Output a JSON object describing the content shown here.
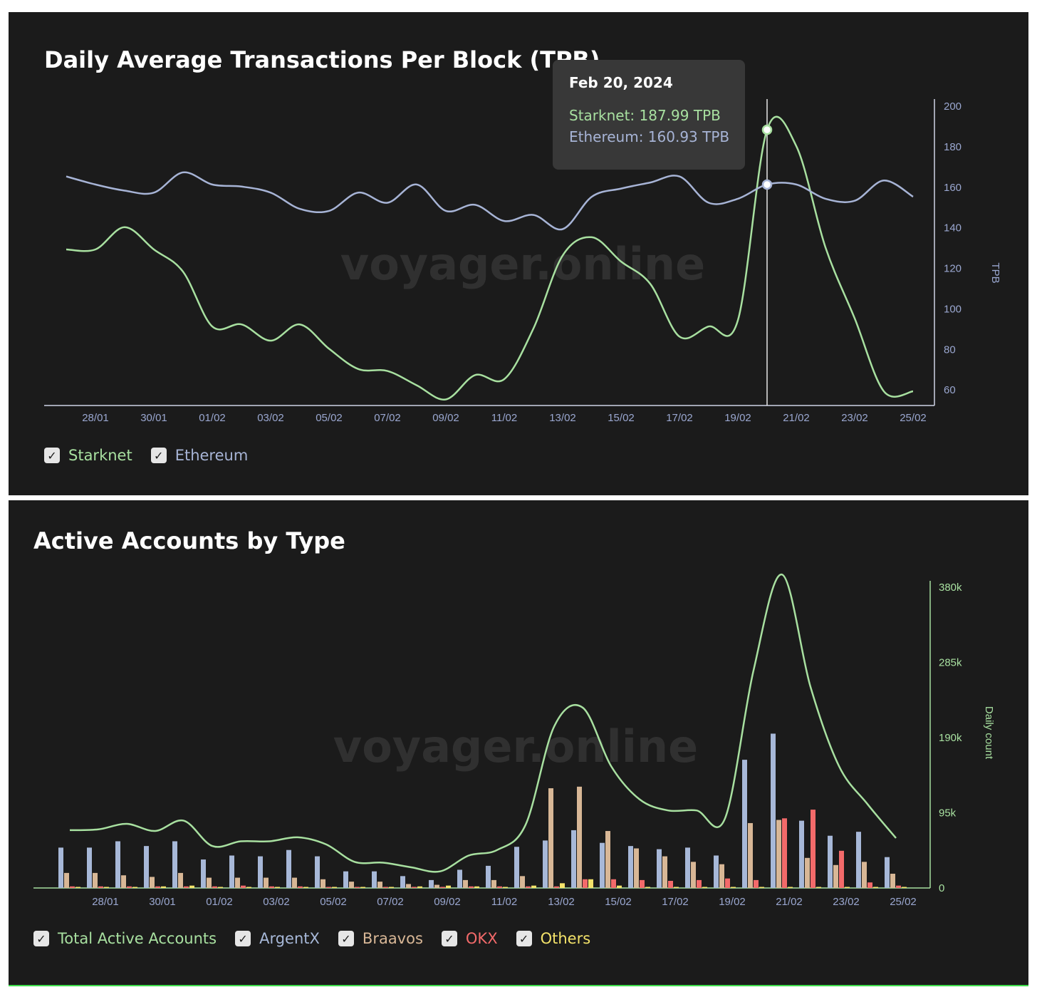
{
  "colors": {
    "starknet": "#a8e0a0",
    "ethereum": "#a7b4d6",
    "total": "#a8e0a0",
    "argentx": "#a7b8d8",
    "braavos": "#d8b796",
    "okx": "#f36a6a",
    "others": "#f4e36a",
    "tick_text": "#9aa7d0"
  },
  "chart_data": [
    {
      "type": "line",
      "title": "Daily Average Transactions Per Block (TPB)",
      "ylabel": "TPB",
      "ylim": [
        52,
        200
      ],
      "yticks": [
        60,
        80,
        100,
        120,
        140,
        160,
        180,
        200
      ],
      "x_tick_labels": [
        "28/01",
        "30/01",
        "01/02",
        "03/02",
        "05/02",
        "07/02",
        "09/02",
        "11/02",
        "13/02",
        "15/02",
        "17/02",
        "19/02",
        "21/02",
        "23/02",
        "25/02"
      ],
      "x": [
        "27/01",
        "28/01",
        "29/01",
        "30/01",
        "31/01",
        "01/02",
        "02/02",
        "03/02",
        "04/02",
        "05/02",
        "06/02",
        "07/02",
        "08/02",
        "09/02",
        "10/02",
        "11/02",
        "12/02",
        "13/02",
        "14/02",
        "15/02",
        "16/02",
        "17/02",
        "18/02",
        "19/02",
        "20/02",
        "21/02",
        "22/02",
        "23/02",
        "24/02",
        "25/02"
      ],
      "series": [
        {
          "name": "Starknet",
          "values": [
            129,
            129,
            140,
            129,
            118,
            91,
            92,
            84,
            92,
            80,
            70,
            69,
            62,
            55,
            67,
            65,
            90,
            126,
            135,
            123,
            112,
            86,
            91,
            94,
            188,
            180,
            130,
            95,
            59,
            59
          ]
        },
        {
          "name": "Ethereum",
          "values": [
            165,
            161,
            158,
            157,
            167,
            161,
            160,
            157,
            149,
            148,
            157,
            152,
            161,
            148,
            151,
            143,
            146,
            139,
            155,
            159,
            162,
            165,
            152,
            154,
            161,
            161,
            154,
            153,
            163,
            155
          ]
        }
      ],
      "tooltip": {
        "title": "Feb 20, 2024",
        "lines": [
          "Starknet: 187.99 TPB",
          "Ethereum: 160.93 TPB"
        ]
      },
      "watermark": "voyager.online",
      "legend": [
        "Starknet",
        "Ethereum"
      ],
      "grid": false,
      "legend_placement": "bottom-left"
    },
    {
      "type": "bar",
      "title": "Active Accounts by Type",
      "ylabel": "Daily count",
      "ylim": [
        0,
        380000
      ],
      "ytick_values": [
        0,
        95000,
        190000,
        285000,
        380000
      ],
      "ytick_labels": [
        "0",
        "95k",
        "190k",
        "285k",
        "380k"
      ],
      "x_tick_labels": [
        "28/01",
        "30/01",
        "01/02",
        "03/02",
        "05/02",
        "07/02",
        "09/02",
        "11/02",
        "13/02",
        "15/02",
        "17/02",
        "19/02",
        "21/02",
        "23/02",
        "25/02"
      ],
      "categories": [
        "27/01",
        "28/01",
        "29/01",
        "30/01",
        "31/01",
        "01/02",
        "02/02",
        "03/02",
        "04/02",
        "05/02",
        "06/02",
        "07/02",
        "08/02",
        "09/02",
        "10/02",
        "11/02",
        "12/02",
        "13/02",
        "14/02",
        "15/02",
        "16/02",
        "17/02",
        "18/02",
        "19/02",
        "20/02",
        "21/02",
        "22/02",
        "23/02",
        "24/02",
        "25/02"
      ],
      "series": [
        {
          "name": "Total Active Accounts",
          "type": "line",
          "values": [
            73000,
            74000,
            81000,
            72000,
            85000,
            53000,
            59000,
            59000,
            64000,
            55000,
            33000,
            32000,
            26000,
            21000,
            41000,
            48000,
            80000,
            204000,
            228000,
            154000,
            112000,
            98000,
            98000,
            88000,
            275000,
            396000,
            254000,
            154000,
            106000,
            63000
          ]
        },
        {
          "name": "ArgentX",
          "values": [
            51000,
            51000,
            59000,
            53000,
            59000,
            36000,
            41000,
            40000,
            48000,
            40000,
            21000,
            21000,
            15000,
            10000,
            23000,
            28000,
            52000,
            60000,
            73000,
            57000,
            53000,
            49000,
            51000,
            41000,
            162000,
            195000,
            85000,
            66000,
            71000,
            39000
          ]
        },
        {
          "name": "Braavos",
          "values": [
            19000,
            19000,
            16000,
            14000,
            19000,
            13000,
            13000,
            13000,
            13000,
            11000,
            8000,
            8000,
            5000,
            4000,
            10000,
            10000,
            15000,
            126000,
            128000,
            72000,
            50000,
            40000,
            33000,
            30000,
            82000,
            86000,
            38000,
            29000,
            33000,
            18000
          ]
        },
        {
          "name": "OKX",
          "values": [
            2000,
            2000,
            2000,
            2000,
            2000,
            2000,
            3000,
            2000,
            2000,
            1000,
            1000,
            1000,
            1000,
            1000,
            2000,
            2000,
            2000,
            2000,
            11000,
            11000,
            10000,
            9000,
            10000,
            12000,
            10000,
            88000,
            99000,
            47000,
            7000,
            3000
          ]
        },
        {
          "name": "Others",
          "values": [
            1000,
            1000,
            1000,
            2000,
            3000,
            1000,
            1000,
            1000,
            1000,
            1000,
            1000,
            1000,
            2000,
            3000,
            2000,
            1000,
            3000,
            6000,
            11000,
            3000,
            1000,
            1000,
            1000,
            1000,
            1000,
            1000,
            1000,
            1000,
            1000,
            1000
          ]
        }
      ],
      "watermark": "voyager.online",
      "legend": [
        "Total Active Accounts",
        "ArgentX",
        "Braavos",
        "OKX",
        "Others"
      ],
      "grid": false,
      "legend_placement": "bottom-left"
    }
  ]
}
